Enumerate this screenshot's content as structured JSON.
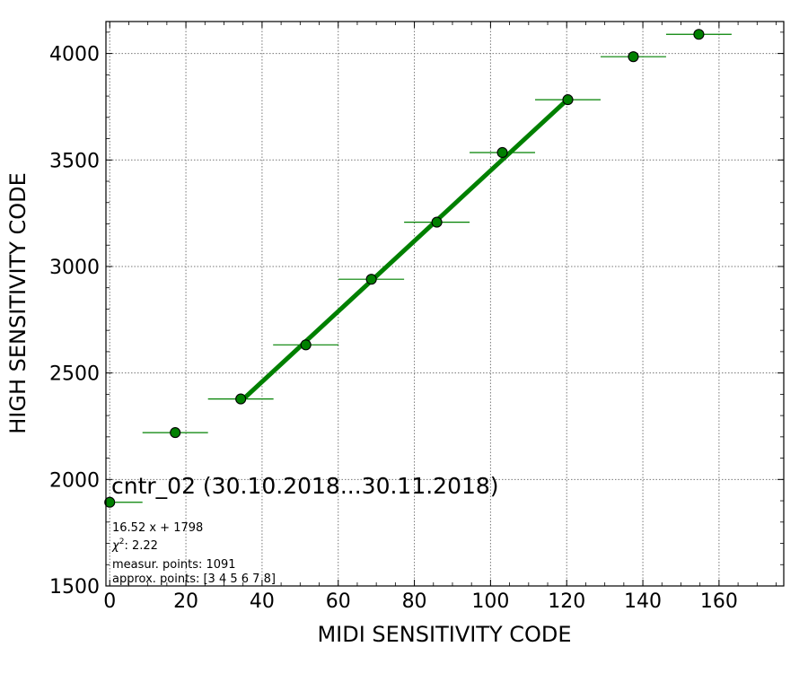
{
  "chart_data": {
    "type": "scatter",
    "title": "cntr_02 (30.10.2018...30.11.2018)",
    "xlabel": "MIDI SENSITIVITY CODE",
    "ylabel": "HIGH SENSITIVITY CODE",
    "xlim": [
      -1,
      177
    ],
    "ylim": [
      1500,
      4150
    ],
    "xticks": [
      0,
      20,
      40,
      60,
      80,
      100,
      120,
      140,
      160
    ],
    "yticks": [
      1500,
      2000,
      2500,
      3000,
      3500,
      4000
    ],
    "grid": true,
    "points": {
      "x": [
        0,
        17.2,
        34.4,
        51.5,
        68.7,
        85.9,
        103.1,
        120.3,
        137.5,
        154.7
      ],
      "y": [
        1893,
        2220,
        2378,
        2632,
        2940,
        3208,
        3535,
        3783,
        3985,
        4090
      ],
      "xerr": [
        8.6,
        8.6,
        8.6,
        8.6,
        8.6,
        8.6,
        8.6,
        8.6,
        8.6,
        8.6
      ],
      "color": "#008000"
    },
    "fit": {
      "slope": 16.52,
      "intercept": 1798,
      "x_range": [
        34.4,
        120.3
      ],
      "color": "#008000"
    },
    "annotations": {
      "equation": "16.52 x + 1798",
      "chi2_label": "χ",
      "chi2_value": ": 2.22",
      "measur": "measur. points: 1091",
      "approx": "approx. points: [3 4 5 6 7 8]"
    }
  }
}
